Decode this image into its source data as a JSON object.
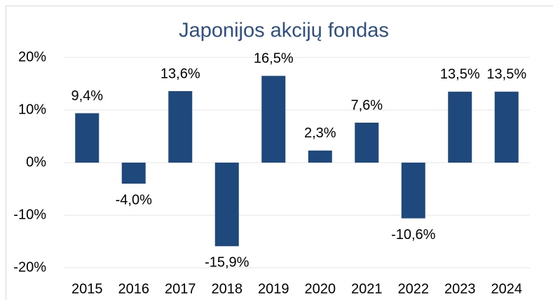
{
  "chart_data": {
    "type": "bar",
    "title": "Japonijos akcijų fondas",
    "categories": [
      "2015",
      "2016",
      "2017",
      "2018",
      "2019",
      "2020",
      "2021",
      "2022",
      "2023",
      "2024"
    ],
    "values": [
      9.4,
      -4.0,
      13.6,
      -15.9,
      16.5,
      2.3,
      7.6,
      -10.6,
      13.5,
      13.5
    ],
    "value_labels": [
      "9,4%",
      "-4,0%",
      "13,6%",
      "-15,9%",
      "16,5%",
      "2,3%",
      "7,6%",
      "-10,6%",
      "13,5%",
      "13,5%"
    ],
    "color": "#1f497d",
    "ylim": [
      -20,
      20
    ],
    "yticks": [
      {
        "value": -20,
        "label": "-20%"
      },
      {
        "value": -10,
        "label": "-10%"
      },
      {
        "value": 0,
        "label": "0%"
      },
      {
        "value": 10,
        "label": "10%"
      },
      {
        "value": 20,
        "label": "20%"
      }
    ],
    "grid": true
  }
}
